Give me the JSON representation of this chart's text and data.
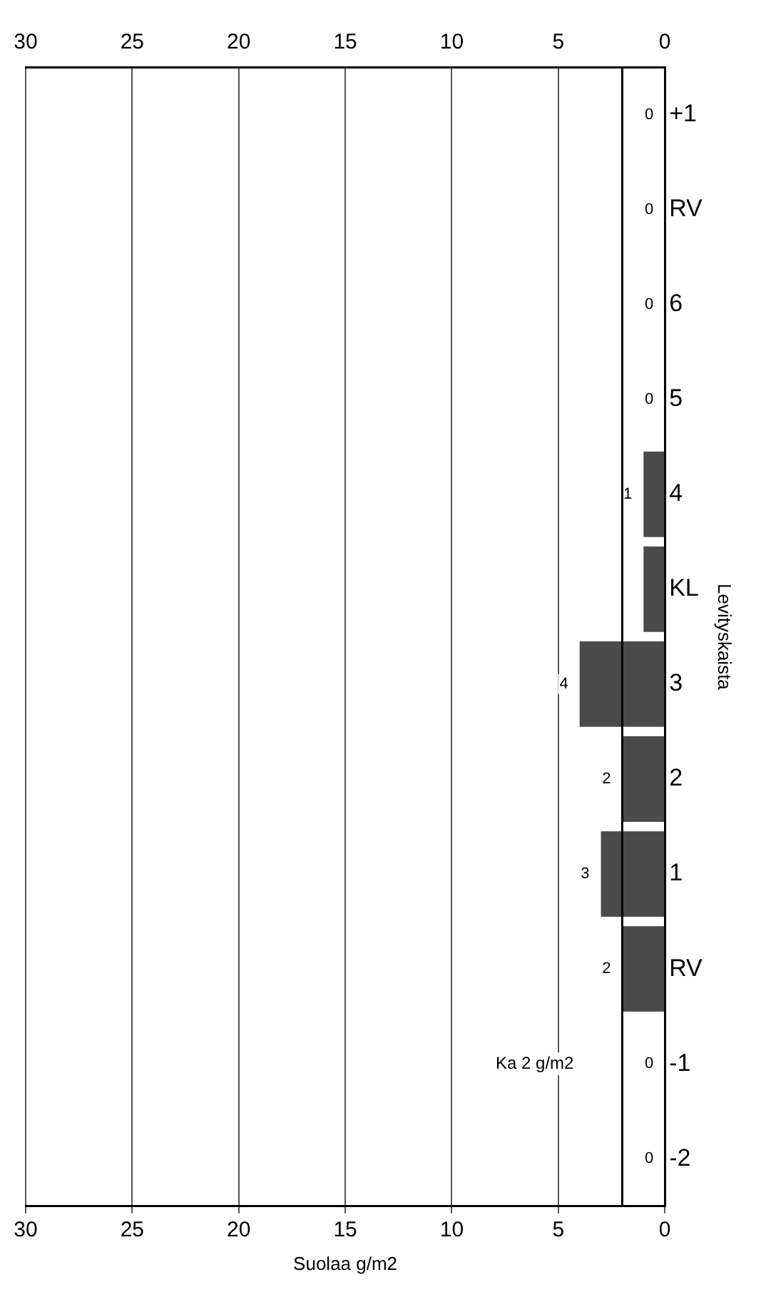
{
  "chart_data": {
    "type": "bar",
    "orientation": "horizontal",
    "xlabel": "Suolaa g/m2",
    "ylabel": "Levityskaista",
    "categories": [
      "+1",
      "RV",
      "6",
      "5",
      "4",
      "KL",
      "3",
      "2",
      "1",
      "RV",
      "-1",
      "-2"
    ],
    "series": [
      {
        "color": "#4a4a4a",
        "values": [
          0,
          0,
          0,
          0,
          1,
          1,
          4,
          2,
          3,
          2,
          0,
          0
        ],
        "value_labels": [
          "0",
          "0",
          "0",
          "0",
          "1",
          null,
          "4",
          "2",
          "3",
          "2",
          "0",
          "0"
        ]
      }
    ],
    "xlim": [
      30,
      0
    ],
    "xticks": [
      0,
      5,
      10,
      15,
      20,
      25,
      30
    ],
    "x2lim": [
      30,
      0
    ],
    "x2ticks": [
      0,
      5,
      10,
      15,
      20,
      25,
      30
    ],
    "grid": "x",
    "legend": false,
    "ref_lines": [
      {
        "axis": "x",
        "value": 2,
        "label": "Ka 2 g/m2",
        "color": "#000000"
      }
    ]
  }
}
